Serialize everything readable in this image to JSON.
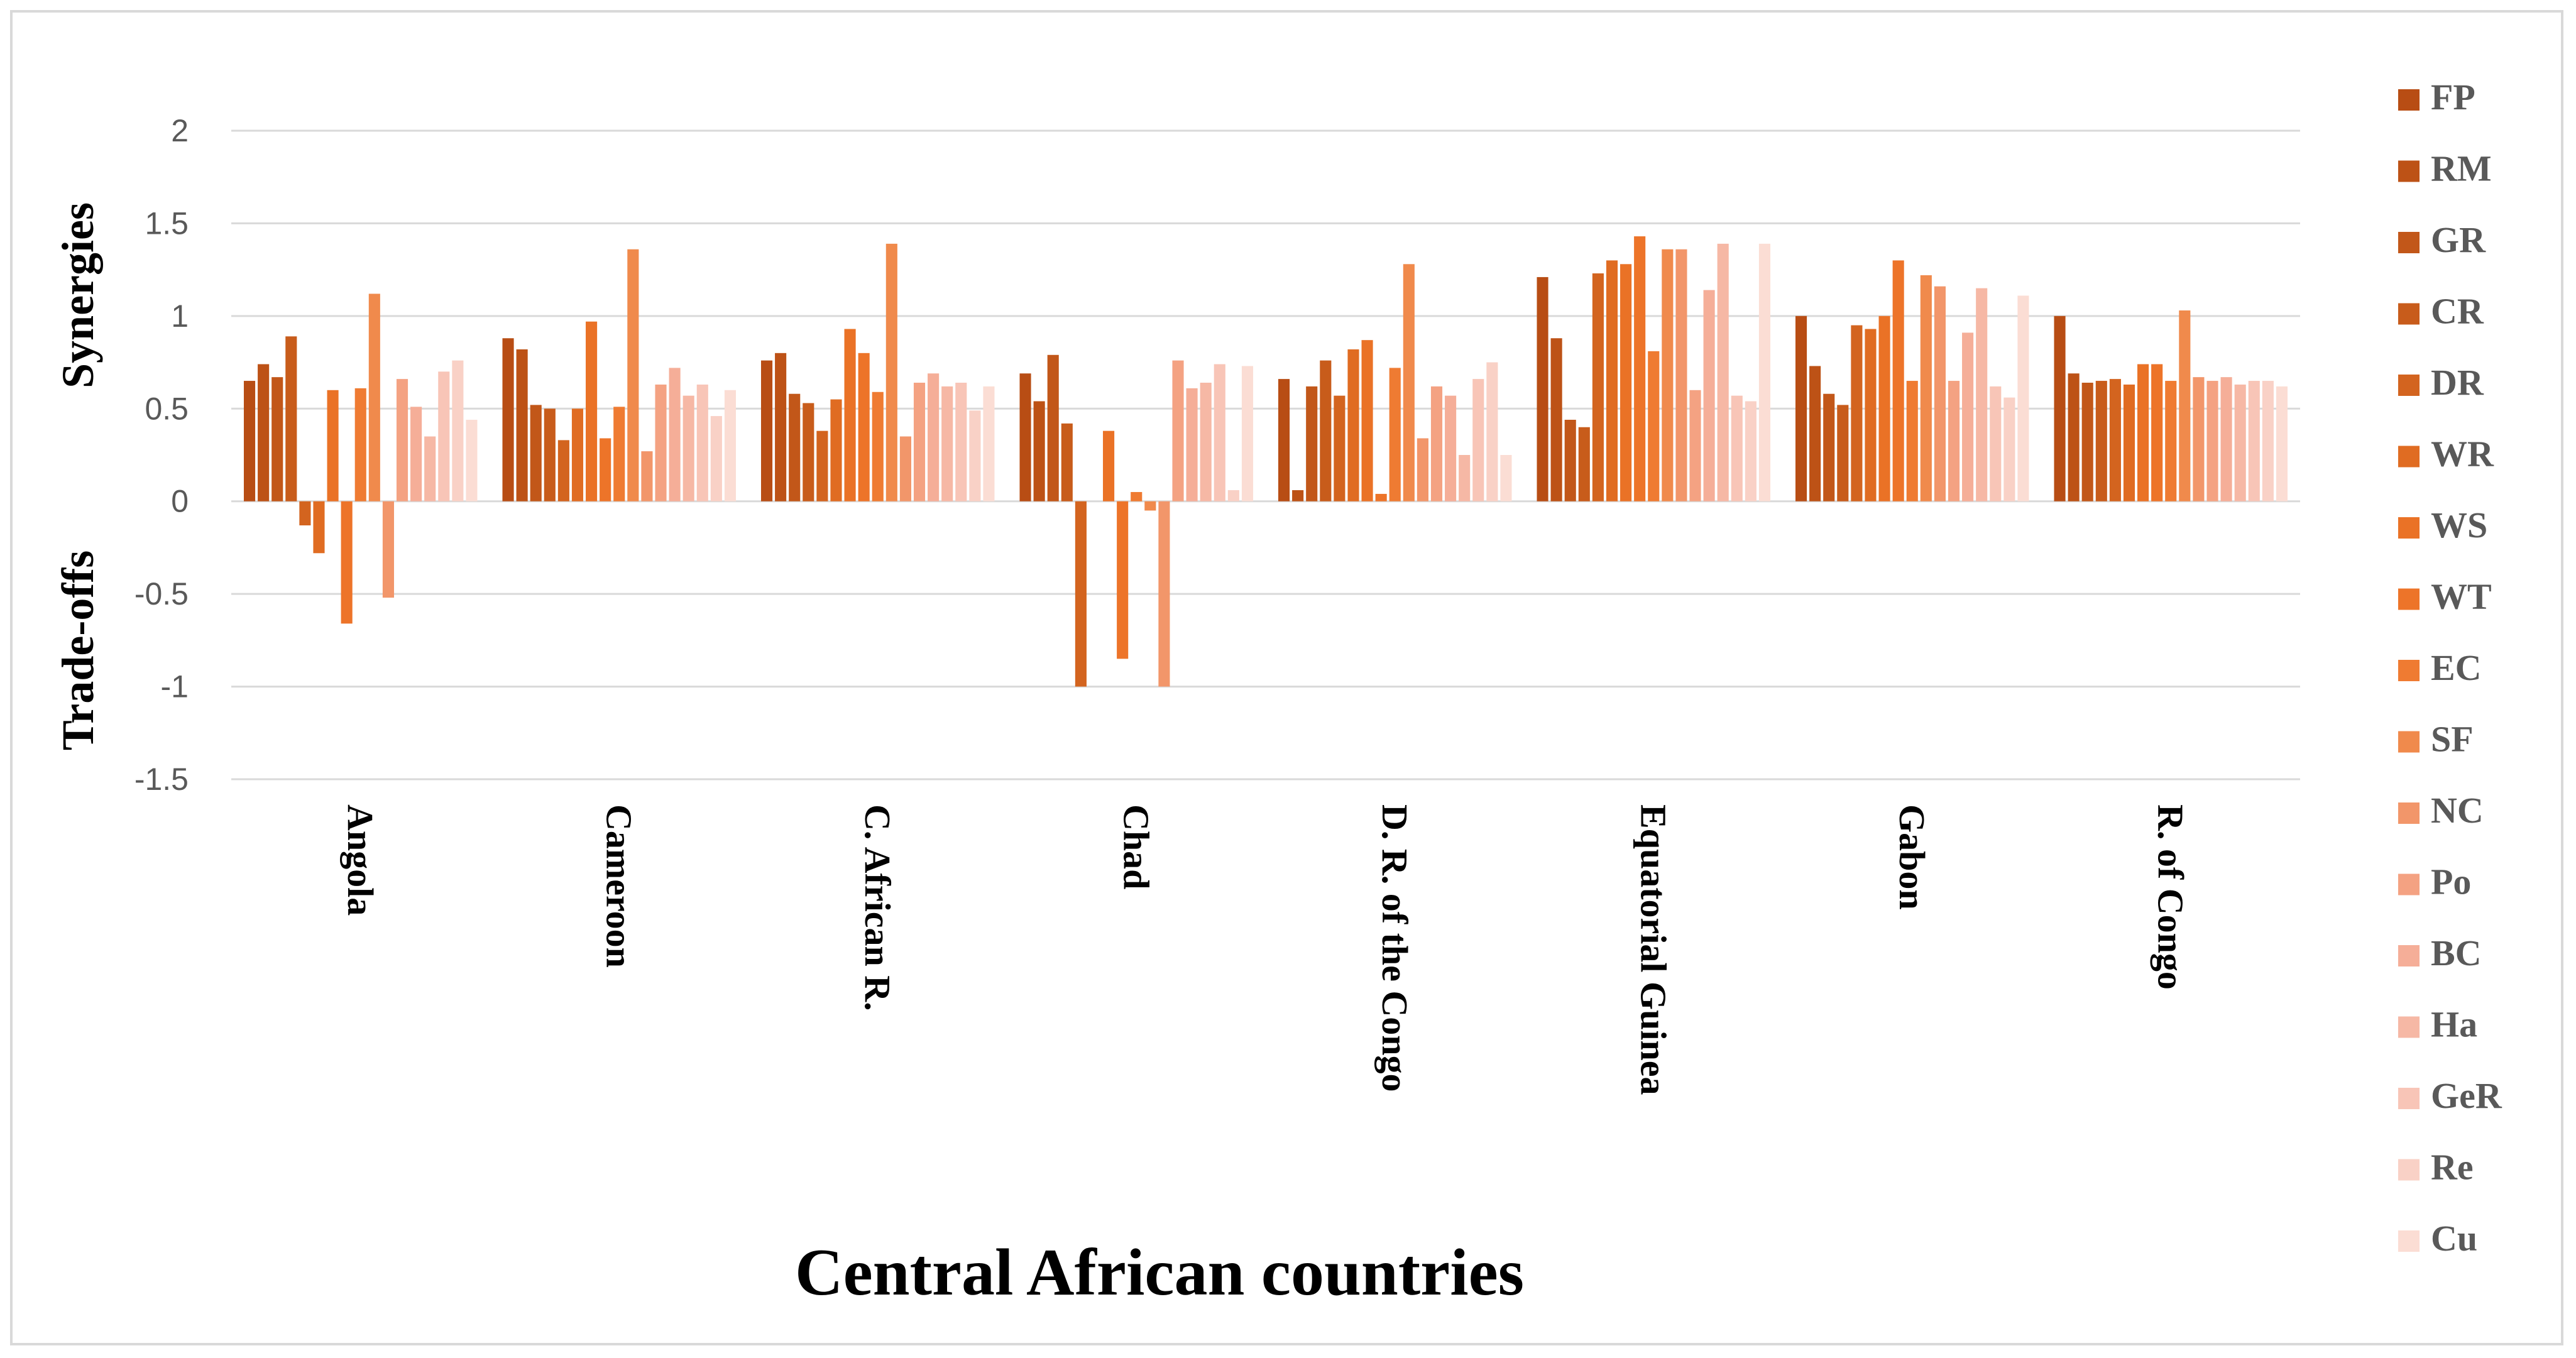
{
  "chart_data": {
    "type": "bar",
    "title": "",
    "xlabel": "Central African countries",
    "ylabel_top": "Synergies",
    "ylabel_bottom": "Trade-offs",
    "ylim": [
      -1.5,
      2
    ],
    "yticks": [
      2,
      1.5,
      1,
      0.5,
      0,
      -0.5,
      -1,
      -1.5
    ],
    "ytick_labels": [
      "2",
      "1.5",
      "1",
      "0.5",
      "0",
      "-0.5",
      "-1",
      "-1.5"
    ],
    "grid": true,
    "legend_position": "right",
    "categories": [
      "Angola",
      "Cameroon",
      "C. African R.",
      "Chad",
      "D. R. of the Congo",
      "Equatorial Guinea",
      "Gabon",
      "R. of Congo"
    ],
    "series": [
      {
        "name": "FP",
        "color": "#b84d14",
        "values": [
          0.65,
          0.88,
          0.76,
          0.69,
          0.66,
          1.21,
          1.0,
          1.0
        ]
      },
      {
        "name": "RM",
        "color": "#bd5216",
        "values": [
          0.74,
          0.82,
          0.8,
          0.54,
          0.06,
          0.88,
          0.73,
          0.69
        ]
      },
      {
        "name": "GR",
        "color": "#c25719",
        "values": [
          0.67,
          0.52,
          0.58,
          0.79,
          0.62,
          0.44,
          0.58,
          0.64
        ]
      },
      {
        "name": "CR",
        "color": "#c85c1b",
        "values": [
          0.89,
          0.5,
          0.53,
          0.42,
          0.76,
          0.4,
          0.52,
          0.65
        ]
      },
      {
        "name": "DR",
        "color": "#d3641f",
        "values": [
          -0.13,
          0.33,
          0.38,
          -1.0,
          0.57,
          1.23,
          0.95,
          0.66
        ]
      },
      {
        "name": "WR",
        "color": "#e06c22",
        "values": [
          -0.28,
          0.5,
          0.55,
          0.0,
          0.82,
          1.3,
          0.93,
          0.63
        ]
      },
      {
        "name": "WS",
        "color": "#ea7226",
        "values": [
          0.6,
          0.97,
          0.93,
          0.38,
          0.87,
          1.28,
          1.0,
          0.74
        ]
      },
      {
        "name": "WT",
        "color": "#ed7429",
        "values": [
          -0.66,
          0.34,
          0.8,
          -0.85,
          0.04,
          1.43,
          1.3,
          0.74
        ]
      },
      {
        "name": "EC",
        "color": "#ef7b32",
        "values": [
          0.61,
          0.51,
          0.59,
          0.05,
          0.72,
          0.81,
          0.65,
          0.65
        ]
      },
      {
        "name": "SF",
        "color": "#f08a4c",
        "values": [
          1.12,
          1.36,
          1.39,
          -0.05,
          1.28,
          1.36,
          1.22,
          1.03
        ]
      },
      {
        "name": "NC",
        "color": "#f2966a",
        "values": [
          -0.52,
          0.27,
          0.35,
          -1.0,
          0.34,
          1.36,
          1.16,
          0.67
        ]
      },
      {
        "name": "Po",
        "color": "#f4a282",
        "values": [
          0.66,
          0.63,
          0.64,
          0.76,
          0.62,
          0.6,
          0.65,
          0.65
        ]
      },
      {
        "name": "BC",
        "color": "#f5ae98",
        "values": [
          0.51,
          0.72,
          0.69,
          0.61,
          0.57,
          1.14,
          0.91,
          0.67
        ]
      },
      {
        "name": "Ha",
        "color": "#f6b8a5",
        "values": [
          0.35,
          0.57,
          0.62,
          0.64,
          0.25,
          1.39,
          1.15,
          0.63
        ]
      },
      {
        "name": "GeR",
        "color": "#f8c5b7",
        "values": [
          0.7,
          0.63,
          0.64,
          0.74,
          0.66,
          0.57,
          0.62,
          0.65
        ]
      },
      {
        "name": "Re",
        "color": "#f9d1c6",
        "values": [
          0.76,
          0.46,
          0.49,
          0.06,
          0.75,
          0.54,
          0.56,
          0.65
        ]
      },
      {
        "name": "Cu",
        "color": "#fbddd4",
        "values": [
          0.44,
          0.6,
          0.62,
          0.73,
          0.25,
          1.39,
          1.11,
          0.62
        ]
      }
    ]
  }
}
